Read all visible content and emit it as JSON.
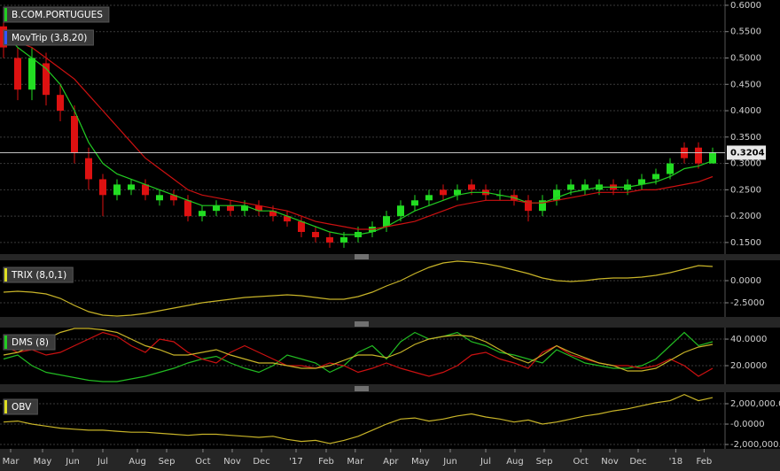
{
  "chart_data": [
    {
      "type": "candlestick",
      "title": "B.COM.PORTUGUES",
      "title_color": "#22cc22",
      "indicator": "MovTrip (3,8,20)",
      "indicator_color": "#3355ff",
      "up_color": "#22dd22",
      "down_color": "#dd1111",
      "open": [
        0.56,
        0.5,
        0.44,
        0.49,
        0.43,
        0.39,
        0.31,
        0.27,
        0.24,
        0.25,
        0.26,
        0.23,
        0.24,
        0.23,
        0.2,
        0.21,
        0.22,
        0.21,
        0.22,
        0.21,
        0.2,
        0.19,
        0.17,
        0.16,
        0.15,
        0.16,
        0.17,
        0.18,
        0.2,
        0.22,
        0.23,
        0.25,
        0.24,
        0.26,
        0.25,
        0.24,
        0.24,
        0.23,
        0.21,
        0.23,
        0.25,
        0.25,
        0.25,
        0.26,
        0.25,
        0.26,
        0.27,
        0.28,
        0.33,
        0.33,
        0.3
      ],
      "high": [
        0.58,
        0.52,
        0.52,
        0.51,
        0.45,
        0.41,
        0.33,
        0.28,
        0.27,
        0.27,
        0.27,
        0.25,
        0.25,
        0.24,
        0.22,
        0.23,
        0.23,
        0.23,
        0.23,
        0.22,
        0.21,
        0.2,
        0.18,
        0.17,
        0.17,
        0.18,
        0.19,
        0.21,
        0.23,
        0.24,
        0.25,
        0.26,
        0.26,
        0.27,
        0.26,
        0.25,
        0.25,
        0.24,
        0.24,
        0.26,
        0.27,
        0.27,
        0.27,
        0.27,
        0.27,
        0.28,
        0.29,
        0.31,
        0.34,
        0.34,
        0.33
      ],
      "low": [
        0.5,
        0.42,
        0.42,
        0.41,
        0.38,
        0.3,
        0.25,
        0.2,
        0.23,
        0.24,
        0.23,
        0.22,
        0.22,
        0.19,
        0.19,
        0.2,
        0.2,
        0.2,
        0.2,
        0.19,
        0.18,
        0.16,
        0.15,
        0.14,
        0.14,
        0.15,
        0.16,
        0.17,
        0.19,
        0.21,
        0.22,
        0.23,
        0.23,
        0.24,
        0.23,
        0.23,
        0.22,
        0.19,
        0.2,
        0.22,
        0.24,
        0.24,
        0.24,
        0.24,
        0.24,
        0.25,
        0.26,
        0.27,
        0.3,
        0.29,
        0.3
      ],
      "close": [
        0.52,
        0.44,
        0.5,
        0.43,
        0.4,
        0.32,
        0.27,
        0.24,
        0.26,
        0.26,
        0.24,
        0.24,
        0.23,
        0.2,
        0.21,
        0.22,
        0.21,
        0.22,
        0.21,
        0.2,
        0.19,
        0.17,
        0.16,
        0.15,
        0.16,
        0.17,
        0.18,
        0.2,
        0.22,
        0.23,
        0.24,
        0.24,
        0.25,
        0.25,
        0.24,
        0.24,
        0.23,
        0.21,
        0.23,
        0.25,
        0.26,
        0.26,
        0.26,
        0.25,
        0.26,
        0.27,
        0.28,
        0.3,
        0.31,
        0.3,
        0.3204
      ],
      "series": [
        {
          "color": "#22cc22",
          "values": [
            0.55,
            0.52,
            0.5,
            0.48,
            0.45,
            0.4,
            0.34,
            0.3,
            0.28,
            0.27,
            0.26,
            0.25,
            0.24,
            0.23,
            0.22,
            0.22,
            0.22,
            0.22,
            0.21,
            0.21,
            0.2,
            0.19,
            0.18,
            0.17,
            0.165,
            0.165,
            0.17,
            0.18,
            0.195,
            0.21,
            0.22,
            0.23,
            0.24,
            0.245,
            0.245,
            0.24,
            0.235,
            0.225,
            0.225,
            0.235,
            0.245,
            0.25,
            0.255,
            0.255,
            0.255,
            0.26,
            0.265,
            0.275,
            0.29,
            0.295,
            0.305
          ]
        },
        {
          "color": "#cc1111",
          "values": [
            0.55,
            0.53,
            0.52,
            0.5,
            0.48,
            0.46,
            0.43,
            0.4,
            0.37,
            0.34,
            0.31,
            0.29,
            0.27,
            0.25,
            0.24,
            0.235,
            0.23,
            0.225,
            0.22,
            0.215,
            0.21,
            0.2,
            0.19,
            0.185,
            0.18,
            0.175,
            0.175,
            0.18,
            0.185,
            0.19,
            0.2,
            0.21,
            0.22,
            0.225,
            0.23,
            0.23,
            0.23,
            0.225,
            0.225,
            0.23,
            0.235,
            0.24,
            0.245,
            0.245,
            0.245,
            0.25,
            0.25,
            0.255,
            0.26,
            0.265,
            0.275
          ]
        }
      ],
      "last_price": 0.3204,
      "xlim": [
        -0.25,
        50.875
      ],
      "ylim": [
        0.128,
        0.61
      ],
      "yticks": [
        {
          "value": 0.6,
          "label": "0.6000"
        },
        {
          "value": 0.55,
          "label": "0.5500"
        },
        {
          "value": 0.5,
          "label": "0.5000"
        },
        {
          "value": 0.45,
          "label": "0.4500"
        },
        {
          "value": 0.4,
          "label": "0.4000"
        },
        {
          "value": 0.35,
          "label": "0.3500"
        },
        {
          "value": 0.3,
          "label": "0.3000"
        },
        {
          "value": 0.25,
          "label": "0.2500"
        },
        {
          "value": 0.2,
          "label": "0.2000"
        },
        {
          "value": 0.15,
          "label": "0.1500"
        }
      ],
      "grid": true
    },
    {
      "type": "line",
      "title": "TRIX (8,0,1)",
      "title_color": "#dddd22",
      "series": [
        {
          "color": "#c8b428",
          "values": [
            -1.3,
            -1.2,
            -1.3,
            -1.5,
            -2.0,
            -2.8,
            -3.5,
            -3.9,
            -4.0,
            -3.9,
            -3.7,
            -3.4,
            -3.1,
            -2.8,
            -2.5,
            -2.3,
            -2.1,
            -1.9,
            -1.8,
            -1.7,
            -1.6,
            -1.7,
            -1.9,
            -2.1,
            -2.1,
            -1.8,
            -1.3,
            -0.6,
            0.0,
            0.8,
            1.5,
            2.0,
            2.2,
            2.1,
            1.9,
            1.6,
            1.2,
            0.8,
            0.3,
            0.0,
            -0.1,
            0.0,
            0.2,
            0.3,
            0.3,
            0.4,
            0.6,
            0.9,
            1.3,
            1.7,
            1.6
          ]
        }
      ],
      "xlim": [
        -0.25,
        50.875
      ],
      "ylim": [
        -4.1,
        2.3
      ],
      "yticks": [
        {
          "value": 0,
          "label": "0.0000"
        },
        {
          "value": -2.5,
          "label": "-2.5000"
        }
      ],
      "grid": true
    },
    {
      "type": "line",
      "title": "DMS (8)",
      "title_color": "#22cc22",
      "series": [
        {
          "color": "#22bb22",
          "values": [
            25,
            28,
            20,
            15,
            13,
            11,
            9,
            8,
            8,
            10,
            12,
            15,
            18,
            22,
            25,
            27,
            22,
            18,
            15,
            20,
            28,
            25,
            22,
            15,
            20,
            30,
            35,
            25,
            38,
            45,
            40,
            42,
            45,
            38,
            35,
            30,
            28,
            25,
            22,
            32,
            27,
            22,
            20,
            18,
            18,
            20,
            25,
            35,
            45,
            35,
            38
          ]
        },
        {
          "color": "#cc1111",
          "values": [
            35,
            30,
            32,
            28,
            30,
            35,
            40,
            45,
            42,
            35,
            30,
            40,
            38,
            30,
            25,
            22,
            30,
            35,
            30,
            25,
            20,
            20,
            18,
            22,
            20,
            15,
            18,
            22,
            18,
            15,
            12,
            15,
            20,
            28,
            30,
            25,
            22,
            18,
            30,
            35,
            28,
            25,
            22,
            20,
            20,
            18,
            20,
            25,
            20,
            12,
            18
          ]
        },
        {
          "color": "#c8b428",
          "values": [
            28,
            30,
            35,
            40,
            45,
            48,
            48,
            47,
            45,
            40,
            35,
            32,
            28,
            28,
            30,
            32,
            28,
            25,
            22,
            22,
            20,
            18,
            18,
            20,
            24,
            28,
            28,
            26,
            30,
            36,
            40,
            42,
            43,
            42,
            38,
            32,
            26,
            22,
            28,
            35,
            30,
            26,
            22,
            20,
            16,
            16,
            18,
            24,
            30,
            34,
            36
          ]
        }
      ],
      "xlim": [
        -0.25,
        50.875
      ],
      "ylim": [
        6,
        48.7
      ],
      "yticks": [
        {
          "value": 40,
          "label": "40.0000"
        },
        {
          "value": 20,
          "label": "20.0000"
        }
      ],
      "grid": true
    },
    {
      "type": "line",
      "title": "OBV",
      "title_color": "#dddd22",
      "series": [
        {
          "color": "#c8b428",
          "values": [
            200000,
            300000,
            0,
            -200000,
            -400000,
            -500000,
            -600000,
            -600000,
            -700000,
            -800000,
            -800000,
            -900000,
            -1000000,
            -1100000,
            -1000000,
            -1000000,
            -1100000,
            -1200000,
            -1300000,
            -1200000,
            -1500000,
            -1700000,
            -1600000,
            -1900000,
            -1600000,
            -1200000,
            -600000,
            0,
            500000,
            600000,
            300000,
            500000,
            800000,
            1000000,
            700000,
            500000,
            200000,
            400000,
            0,
            200000,
            500000,
            800000,
            1000000,
            1300000,
            1500000,
            1800000,
            2100000,
            2300000,
            2900000,
            2300000,
            2600000
          ]
        }
      ],
      "xlim": [
        -0.25,
        50.875
      ],
      "ylim": [
        -2430000,
        3130000
      ],
      "yticks": [
        {
          "value": 2000000,
          "label": "2,000,000.0"
        },
        {
          "value": 0,
          "label": "-0.0000"
        },
        {
          "value": -2000000,
          "label": "-2,000,000.0"
        }
      ],
      "grid": true,
      "xticks": [
        {
          "value": 0.5,
          "label": "Mar"
        },
        {
          "value": 2.75,
          "label": "May"
        },
        {
          "value": 4.875,
          "label": "Jun"
        },
        {
          "value": 7,
          "label": "Jul"
        },
        {
          "value": 9.44,
          "label": "Aug"
        },
        {
          "value": 11.5,
          "label": "Sep"
        },
        {
          "value": 14.06,
          "label": "Oct"
        },
        {
          "value": 16.125,
          "label": "Nov"
        },
        {
          "value": 18.19,
          "label": "Dec"
        },
        {
          "value": 20.625,
          "label": "'17"
        },
        {
          "value": 22.75,
          "label": "Feb"
        },
        {
          "value": 24.8,
          "label": "Mar"
        },
        {
          "value": 27.3,
          "label": "Apr"
        },
        {
          "value": 29.4,
          "label": "May"
        },
        {
          "value": 31.5,
          "label": "Jun"
        },
        {
          "value": 34,
          "label": "Jul"
        },
        {
          "value": 36.06,
          "label": "Aug"
        },
        {
          "value": 38.125,
          "label": "Sep"
        },
        {
          "value": 40.7,
          "label": "Oct"
        },
        {
          "value": 42.75,
          "label": "Nov"
        },
        {
          "value": 44.75,
          "label": "Dec"
        },
        {
          "value": 47.4,
          "label": "'18"
        },
        {
          "value": 49.4,
          "label": "Feb"
        }
      ]
    }
  ]
}
